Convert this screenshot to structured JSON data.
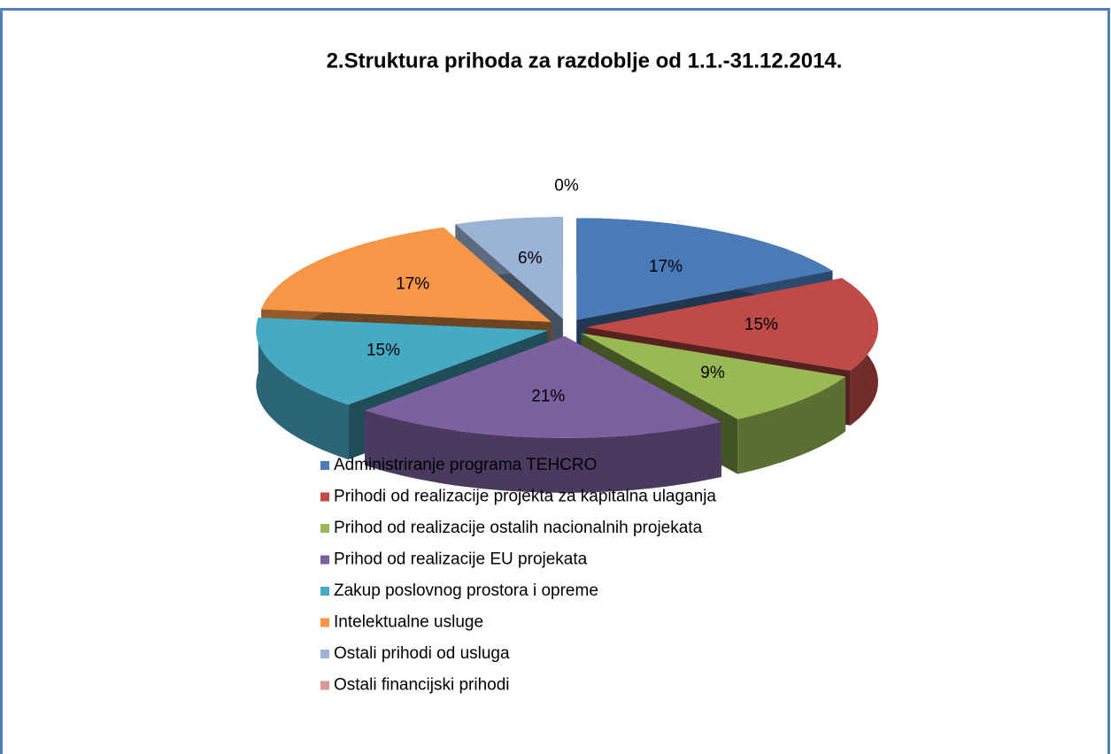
{
  "chart_data": {
    "type": "pie",
    "title": "2.Struktura prihoda za razdoblje od 1.1.-31.12.2014.",
    "categories": [
      "Administriranje programa TEHCRO",
      "Prihodi od realizacije projekta za kapitalna ulaganja",
      "Prihod od realizacije ostalih nacionalnih projekata",
      "Prihod od realizacije EU projekata",
      "Zakup poslovnog prostora i opreme",
      "Intelektualne usluge",
      "Ostali prihodi od usluga",
      "Ostali financijski prihodi"
    ],
    "values": [
      17,
      15,
      9,
      21,
      15,
      17,
      6,
      0
    ],
    "value_labels": [
      "17%",
      "15%",
      "9%",
      "21%",
      "15%",
      "17%",
      "6%",
      "0%"
    ],
    "colors": [
      "#4a7ab7",
      "#be4b48",
      "#98b954",
      "#7d60a0",
      "#46aac5",
      "#f79646",
      "#9ab3d6",
      "#d99795"
    ]
  }
}
